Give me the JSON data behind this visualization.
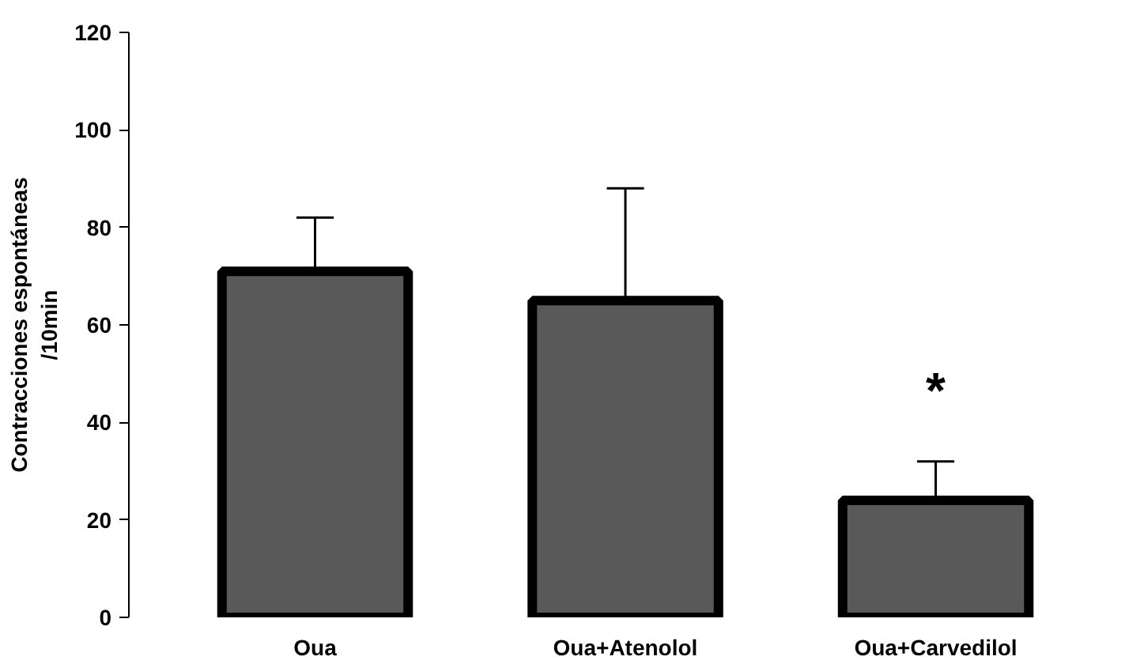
{
  "chart_data": {
    "type": "bar",
    "ylabel": "Contracciones espontáneas\n/10min",
    "categories": [
      "Oua",
      "Oua+Atenolol",
      "Oua+Carvedilol"
    ],
    "values": [
      71,
      65,
      24
    ],
    "errors": [
      [
        71,
        82
      ],
      [
        65,
        88
      ],
      [
        24,
        32
      ]
    ],
    "color": "#595959",
    "ylim": [
      0,
      120
    ],
    "yticks": [
      0,
      20,
      40,
      60,
      80,
      100,
      120
    ],
    "grid": false,
    "annotations": [
      "*"
    ]
  }
}
